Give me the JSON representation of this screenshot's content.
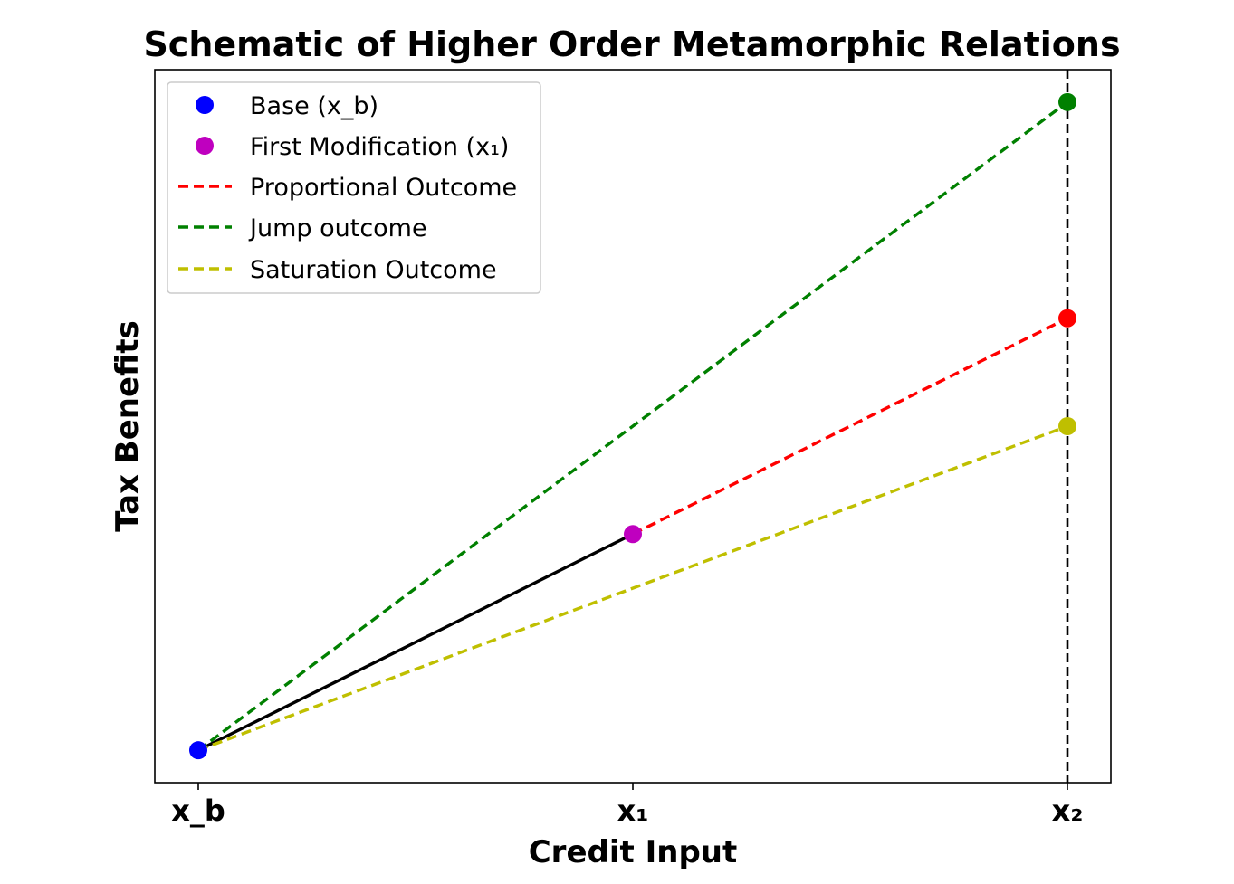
{
  "chart_data": {
    "type": "line",
    "title": "Schematic of Higher Order Metamorphic Relations",
    "xlabel": "Credit Input",
    "ylabel": "Tax Benefits",
    "x_ticks": [
      "x_b",
      "x₁",
      "x₂"
    ],
    "x_tick_values": [
      0,
      1,
      2
    ],
    "xlim": [
      -0.1,
      2.1
    ],
    "ylim": [
      -0.1,
      2.1
    ],
    "grid": false,
    "legend_placement": "upper-left",
    "points": [
      {
        "name": "Base (x_b)",
        "x": 0,
        "y": 0,
        "color": "#0000ff"
      },
      {
        "name": "First Modification (x₁)",
        "x": 1,
        "y": 0.667,
        "color": "#bf00bf"
      },
      {
        "name": "",
        "x": 2,
        "y": 1.333,
        "color": "#ff0000"
      },
      {
        "name": "",
        "x": 2,
        "y": 2.0,
        "color": "#008000"
      },
      {
        "name": "",
        "x": 2,
        "y": 1.0,
        "color": "#bfbf00"
      }
    ],
    "series": [
      {
        "name": "",
        "style": "solid",
        "color": "#000000",
        "x": [
          0,
          1
        ],
        "y": [
          0,
          0.667
        ]
      },
      {
        "name": "Proportional Outcome",
        "style": "dashed",
        "color": "#ff0000",
        "x": [
          1,
          2
        ],
        "y": [
          0.667,
          1.333
        ]
      },
      {
        "name": "Jump outcome",
        "style": "dashed",
        "color": "#008000",
        "x": [
          0,
          2
        ],
        "y": [
          0,
          2.0
        ]
      },
      {
        "name": "Saturation Outcome",
        "style": "dashed",
        "color": "#bfbf00",
        "x": [
          0,
          2
        ],
        "y": [
          0,
          1.0
        ]
      }
    ],
    "vline": {
      "x": 2,
      "style": "dashed",
      "color": "#000000"
    },
    "legend": [
      {
        "label": "Base (x_b)",
        "kind": "marker",
        "color": "#0000ff"
      },
      {
        "label": "First Modification (x₁)",
        "kind": "marker",
        "color": "#bf00bf"
      },
      {
        "label": "Proportional Outcome",
        "kind": "dashed",
        "color": "#ff0000"
      },
      {
        "label": "Jump outcome",
        "kind": "dashed",
        "color": "#008000"
      },
      {
        "label": "Saturation Outcome",
        "kind": "dashed",
        "color": "#bfbf00"
      }
    ]
  }
}
